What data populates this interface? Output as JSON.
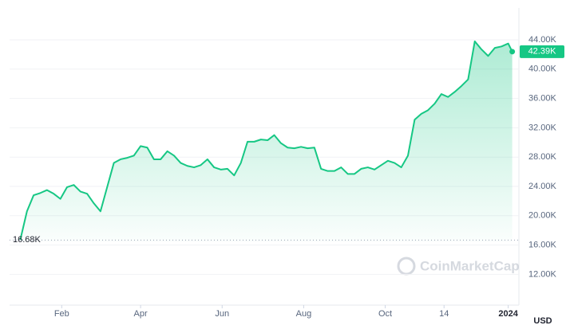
{
  "chart_data": {
    "type": "area",
    "color": "#16c784",
    "x": [
      0,
      5,
      10,
      15,
      20,
      25,
      30,
      35,
      40,
      45,
      50,
      55,
      60,
      65,
      70,
      75,
      80,
      85,
      90,
      95,
      100,
      105,
      110,
      115,
      120,
      125,
      130,
      135,
      140,
      145,
      150,
      155,
      160,
      165,
      170,
      175,
      180,
      185,
      190,
      195,
      200,
      205,
      210,
      215,
      220,
      225,
      230,
      235,
      240,
      245,
      250,
      255,
      260,
      265,
      270,
      275,
      280,
      285,
      290,
      295,
      300,
      305,
      310,
      315,
      320,
      325,
      330,
      335,
      340,
      345,
      350,
      355,
      360,
      365,
      368
    ],
    "values": [
      16700,
      20600,
      22800,
      23100,
      23500,
      23000,
      22300,
      23900,
      24200,
      23300,
      23000,
      21700,
      20600,
      23900,
      27200,
      27700,
      27900,
      28200,
      29500,
      29300,
      27700,
      27700,
      28800,
      28200,
      27200,
      26800,
      26600,
      26900,
      27700,
      26600,
      26300,
      26400,
      25500,
      27200,
      30100,
      30100,
      30400,
      30300,
      31000,
      29900,
      29300,
      29200,
      29400,
      29200,
      29300,
      26400,
      26100,
      26100,
      26600,
      25700,
      25700,
      26400,
      26600,
      26300,
      26900,
      27500,
      27200,
      26600,
      28200,
      33100,
      33900,
      34400,
      35300,
      36600,
      36200,
      36900,
      37700,
      38600,
      43800,
      42700,
      41800,
      42900,
      43100,
      43500,
      42390
    ],
    "xlim": [
      -8,
      373
    ],
    "xticks": [
      {
        "value": 31,
        "label": "Feb"
      },
      {
        "value": 90,
        "label": "Apr"
      },
      {
        "value": 151,
        "label": "Jun"
      },
      {
        "value": 212,
        "label": "Aug"
      },
      {
        "value": 273,
        "label": "Oct"
      },
      {
        "value": 317,
        "label": "14"
      },
      {
        "value": 365,
        "label": "2024"
      }
    ],
    "ylim": [
      7800,
      48350
    ],
    "yticks": [
      {
        "value": 12000,
        "label": "12.00K"
      },
      {
        "value": 16000,
        "label": "16.00K"
      },
      {
        "value": 20000,
        "label": "20.00K"
      },
      {
        "value": 24000,
        "label": "24.00K"
      },
      {
        "value": 28000,
        "label": "28.00K"
      },
      {
        "value": 32000,
        "label": "32.00K"
      },
      {
        "value": 36000,
        "label": "36.00K"
      },
      {
        "value": 40000,
        "label": "40.00K"
      },
      {
        "value": 44000,
        "label": "44.00K"
      }
    ],
    "grid": true,
    "low_marker": {
      "value": 16680,
      "label": "16.68K"
    },
    "last_marker": {
      "value": 42390,
      "label": "42.39K"
    },
    "currency": "USD",
    "watermark": "CoinMarketCap"
  }
}
